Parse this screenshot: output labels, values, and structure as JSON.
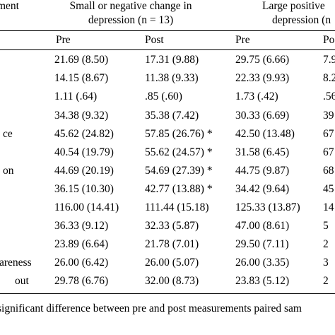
{
  "header": {
    "col0_label": "ment",
    "group_small_line1": "Small or negative change in",
    "group_small_line2": "depression (n = 13)",
    "group_large_line1": "Large positive",
    "group_large_line2": "depression (n"
  },
  "subheader": {
    "pre1": "Pre",
    "post1": "Post",
    "pre2": "Pre",
    "post2": "Po"
  },
  "rows": [
    {
      "label": "",
      "pre1": "21.69 (8.50)",
      "post1": "17.31 (9.88)",
      "pre2": "29.75 (6.66)",
      "post2": "7.9"
    },
    {
      "label": "",
      "pre1": "14.15 (8.67)",
      "post1": "11.38 (9.33)",
      "pre2": "22.33 (9.93)",
      "post2": "8.2"
    },
    {
      "label": "",
      "pre1": "1.11 (.64)",
      "post1": ".85 (.60)",
      "pre2": "1.73 (.42)",
      "post2": ".56"
    },
    {
      "label": "",
      "pre1": "34.38 (9.32)",
      "post1": "35.38 (7.42)",
      "pre2": "30.33 (6.69)",
      "post2": "39"
    },
    {
      "label": "ce",
      "pre1": "45.62 (24.82)",
      "post1": "57.85 (26.76) *",
      "pre2": "42.50 (13.48)",
      "post2": "67"
    },
    {
      "label": "",
      "pre1": "40.54 (19.79)",
      "post1": "55.62 (24.57) *",
      "pre2": "31.58 (6.45)",
      "post2": "67"
    },
    {
      "label": "on",
      "pre1": "44.69 (20.19)",
      "post1": "54.69 (27.39) *",
      "pre2": "44.75 (9.87)",
      "post2": "68"
    },
    {
      "label": "",
      "pre1": "36.15 (10.30)",
      "post1": "42.77 (13.88) *",
      "pre2": "34.42 (9.64)",
      "post2": "45"
    },
    {
      "label": "",
      "pre1": "116.00 (14.41)",
      "post1": "111.44 (15.18)",
      "pre2": "125.33 (13.87)",
      "post2": "14"
    },
    {
      "label": "",
      "pre1": "36.33 (9.12)",
      "post1": "32.33 (5.87)",
      "pre2": "47.00 (8.61)",
      "post2": "5"
    },
    {
      "label": "",
      "pre1": "23.89 (6.64)",
      "post1": "21.78 (7.01)",
      "pre2": "29.50 (7.11)",
      "post2": "2"
    },
    {
      "label": "areness",
      "pre1": "26.00 (6.42)",
      "post1": "26.00 (5.07)",
      "pre2": "26.00 (3.35)",
      "post2": "3"
    },
    {
      "label": "out",
      "pre1": "29.78 (6.76)",
      "post1": "32.00 (8.73)",
      "pre2": "23.83 (5.12)",
      "post2": "2"
    }
  ],
  "footnote": "significant difference between pre and post measurements paired sam"
}
